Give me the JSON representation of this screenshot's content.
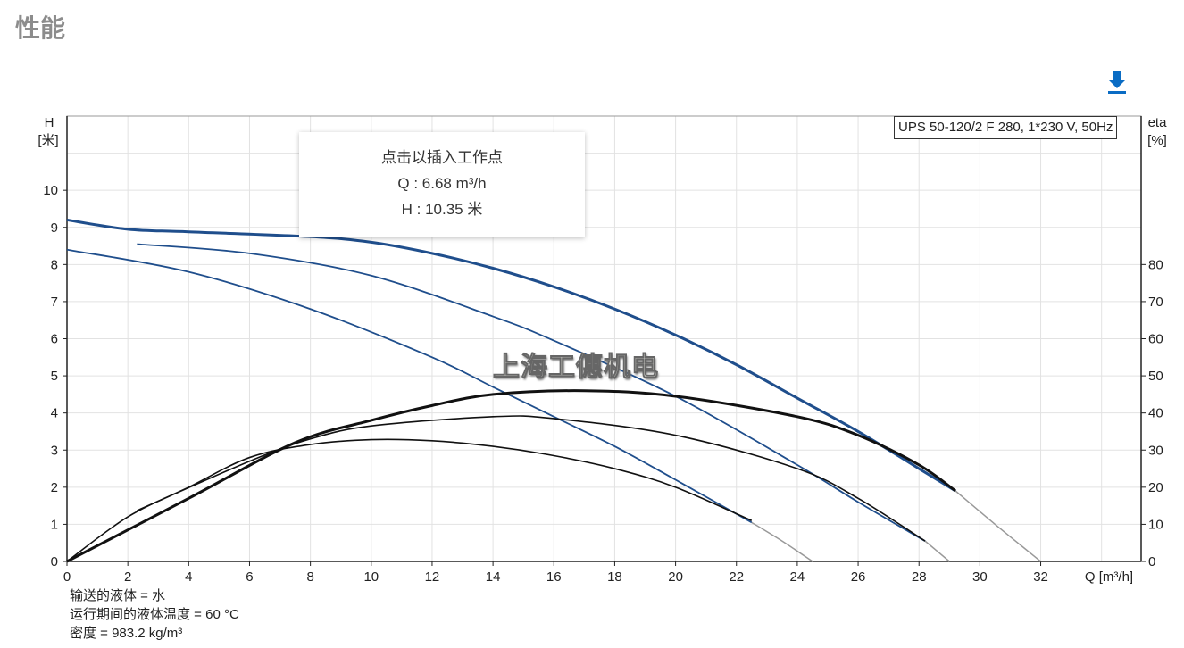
{
  "page": {
    "title": "性能",
    "download_icon": "download-icon"
  },
  "tooltip": {
    "line1": "点击以插入工作点",
    "line2": "Q : 6.68 m³/h",
    "line3": "H : 10.35 米"
  },
  "legend": {
    "label": "UPS 50-120/2 F 280, 1*230 V, 50Hz"
  },
  "watermark": "上海工僡机电",
  "notes": {
    "fluid": "输送的液体 = 水",
    "temperature": "运行期间的液体温度 = 60 °C",
    "density": "密度 = 983.2 kg/m³"
  },
  "colors": {
    "head_curve": "#1f4e8c",
    "eta_curve": "#111111",
    "extension": "#999999",
    "accent": "#0a6cc4"
  },
  "chart_data": {
    "type": "line",
    "xlabel": "Q [m³/h]",
    "ylabel_left": [
      "H",
      "[米]"
    ],
    "ylabel_right": [
      "eta",
      "[%]"
    ],
    "xlim": [
      0,
      35.3
    ],
    "ylim_left": [
      0,
      12
    ],
    "ylim_right": [
      0,
      120
    ],
    "xticks": [
      0,
      2,
      4,
      6,
      8,
      10,
      12,
      14,
      16,
      18,
      20,
      22,
      24,
      26,
      28,
      30,
      32
    ],
    "yticks_left": [
      0,
      1,
      2,
      3,
      4,
      5,
      6,
      7,
      8,
      9,
      10
    ],
    "yticks_right": [
      0,
      10,
      20,
      30,
      40,
      50,
      60,
      70,
      80
    ],
    "grid": true,
    "head_curves": [
      {
        "points": [
          [
            0,
            9.2
          ],
          [
            2,
            8.95
          ],
          [
            4,
            8.88
          ],
          [
            8,
            8.75
          ],
          [
            10,
            8.6
          ],
          [
            12,
            8.3
          ],
          [
            14,
            7.9
          ],
          [
            16,
            7.4
          ],
          [
            18,
            6.8
          ],
          [
            20,
            6.1
          ],
          [
            22,
            5.3
          ],
          [
            24,
            4.4
          ],
          [
            26,
            3.5
          ],
          [
            28,
            2.5
          ],
          [
            29.2,
            1.9
          ]
        ],
        "extension": [
          [
            29.2,
            1.9
          ],
          [
            30.5,
            1.0
          ],
          [
            32,
            0
          ]
        ],
        "thick": true
      },
      {
        "points": [
          [
            2.3,
            8.55
          ],
          [
            6,
            8.3
          ],
          [
            10,
            7.7
          ],
          [
            14,
            6.6
          ],
          [
            16,
            5.95
          ],
          [
            20,
            4.45
          ],
          [
            24,
            2.6
          ],
          [
            26,
            1.6
          ],
          [
            28.2,
            0.55
          ]
        ],
        "extension": [
          [
            28.2,
            0.55
          ],
          [
            29,
            0
          ]
        ]
      },
      {
        "points": [
          [
            0,
            8.4
          ],
          [
            4,
            7.8
          ],
          [
            8,
            6.8
          ],
          [
            12,
            5.5
          ],
          [
            14,
            4.7
          ],
          [
            16,
            3.9
          ],
          [
            18,
            3.1
          ],
          [
            20,
            2.2
          ],
          [
            22.5,
            1.05
          ]
        ],
        "extension": [
          [
            22.5,
            1.05
          ],
          [
            23.5,
            0.55
          ],
          [
            24.5,
            0
          ]
        ]
      }
    ],
    "eta_curves": [
      {
        "points": [
          [
            0,
            0
          ],
          [
            4,
            17
          ],
          [
            7.5,
            32
          ],
          [
            10,
            38
          ],
          [
            12,
            42
          ],
          [
            14,
            45
          ],
          [
            17,
            46
          ],
          [
            20,
            44.5
          ],
          [
            24,
            39
          ],
          [
            26,
            34
          ],
          [
            28,
            26
          ],
          [
            29.2,
            19
          ]
        ],
        "thick": true
      },
      {
        "points": [
          [
            2.3,
            13.7
          ],
          [
            6,
            27
          ],
          [
            8,
            33
          ],
          [
            10,
            36.5
          ],
          [
            14,
            39
          ],
          [
            16,
            38.5
          ],
          [
            20,
            34
          ],
          [
            24,
            25
          ],
          [
            26,
            17
          ],
          [
            28.2,
            5.5
          ]
        ]
      },
      {
        "points": [
          [
            0,
            0
          ],
          [
            2,
            12
          ],
          [
            4,
            20
          ],
          [
            6,
            28
          ],
          [
            8,
            31.5
          ],
          [
            10,
            32.8
          ],
          [
            12,
            32.5
          ],
          [
            14,
            31
          ],
          [
            16,
            28.5
          ],
          [
            18,
            25
          ],
          [
            20,
            20
          ],
          [
            22.5,
            11
          ]
        ]
      }
    ]
  }
}
